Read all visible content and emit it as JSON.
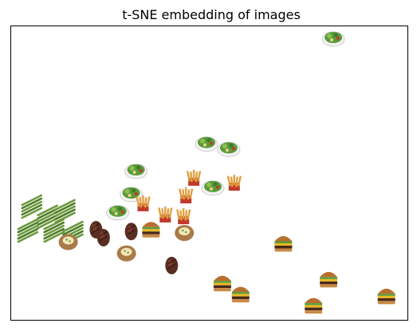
{
  "chart_data": {
    "type": "scatter",
    "title": "t-SNE embedding of images",
    "xlabel": "",
    "ylabel": "",
    "axes_ticks": "none",
    "grid": false,
    "xlim": [
      0,
      100
    ],
    "ylim": [
      0,
      100
    ],
    "point_style": "image-thumbnails",
    "groups": {
      "salad": "#5a9a3a",
      "fries": "#e0a040",
      "asparagus": "#6b9a3c",
      "steak": "#5a2e22",
      "potato": "#a87a48",
      "burger": "#b86f2e"
    },
    "points": [
      {
        "group": "salad",
        "x": 81.3,
        "y": 96.2
      },
      {
        "group": "salad",
        "x": 49.3,
        "y": 60.4
      },
      {
        "group": "salad",
        "x": 54.9,
        "y": 58.6
      },
      {
        "group": "salad",
        "x": 31.5,
        "y": 51.1
      },
      {
        "group": "salad",
        "x": 50.9,
        "y": 45.4
      },
      {
        "group": "salad",
        "x": 30.3,
        "y": 43.2
      },
      {
        "group": "salad",
        "x": 26.9,
        "y": 37.0
      },
      {
        "group": "fries",
        "x": 46.1,
        "y": 48.4
      },
      {
        "group": "fries",
        "x": 56.3,
        "y": 46.7
      },
      {
        "group": "fries",
        "x": 44.1,
        "y": 42.4
      },
      {
        "group": "fries",
        "x": 33.3,
        "y": 39.7
      },
      {
        "group": "fries",
        "x": 38.9,
        "y": 35.9
      },
      {
        "group": "fries",
        "x": 43.5,
        "y": 35.3
      },
      {
        "group": "asparagus",
        "x": 5.2,
        "y": 38.6
      },
      {
        "group": "asparagus",
        "x": 9.2,
        "y": 35.1
      },
      {
        "group": "asparagus",
        "x": 13.6,
        "y": 37.0
      },
      {
        "group": "asparagus",
        "x": 4.2,
        "y": 30.4
      },
      {
        "group": "asparagus",
        "x": 10.8,
        "y": 30.4
      },
      {
        "group": "asparagus",
        "x": 15.6,
        "y": 29.6
      },
      {
        "group": "steak",
        "x": 21.4,
        "y": 30.7
      },
      {
        "group": "steak",
        "x": 23.3,
        "y": 28.0
      },
      {
        "group": "steak",
        "x": 30.3,
        "y": 30.1
      },
      {
        "group": "steak",
        "x": 40.5,
        "y": 18.5
      },
      {
        "group": "potato",
        "x": 14.4,
        "y": 26.5
      },
      {
        "group": "potato",
        "x": 29.1,
        "y": 22.6
      },
      {
        "group": "potato",
        "x": 43.7,
        "y": 29.6
      },
      {
        "group": "burger",
        "x": 35.3,
        "y": 31.3
      },
      {
        "group": "burger",
        "x": 68.7,
        "y": 26.5
      },
      {
        "group": "burger",
        "x": 53.3,
        "y": 13.0
      },
      {
        "group": "burger",
        "x": 57.9,
        "y": 9.2
      },
      {
        "group": "burger",
        "x": 80.1,
        "y": 14.3
      },
      {
        "group": "burger",
        "x": 76.3,
        "y": 5.4
      },
      {
        "group": "burger",
        "x": 94.7,
        "y": 8.6
      }
    ]
  }
}
